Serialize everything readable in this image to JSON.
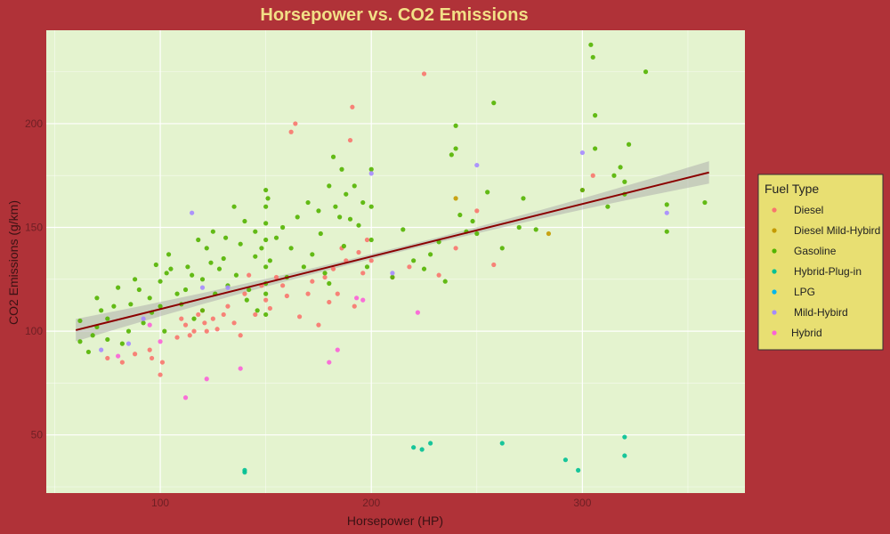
{
  "colors": {
    "background": "#b03238",
    "panel": "#e4f3cf",
    "grid_major": "#ffffff",
    "title": "#f2df86",
    "tick": "#6e1f24",
    "axis_label": "#3a1214",
    "legend_bg": "#e8df72",
    "trend_line": "#8b0000",
    "ribbon": "#a9a9a9"
  },
  "chart_data": {
    "type": "scatter",
    "title": "Horsepower vs. CO2 Emissions",
    "xlabel": "Horsepower (HP)",
    "ylabel": "CO2 Emissions (g/km)",
    "xlim": [
      46,
      377
    ],
    "ylim": [
      22,
      245
    ],
    "x_ticks": [
      100,
      200,
      300
    ],
    "y_ticks": [
      50,
      100,
      150,
      200
    ],
    "grid": true,
    "legend": {
      "title": "Fuel Type",
      "position": "right"
    },
    "trend": {
      "method": "linear",
      "x": [
        60,
        360
      ],
      "y": [
        100.5,
        176.5
      ]
    },
    "series": [
      {
        "name": "Diesel",
        "color": "#f8766d",
        "points": [
          [
            75,
            87
          ],
          [
            82,
            85
          ],
          [
            88,
            89
          ],
          [
            95,
            91
          ],
          [
            96,
            87
          ],
          [
            100,
            79
          ],
          [
            101,
            85
          ],
          [
            108,
            97
          ],
          [
            110,
            106
          ],
          [
            112,
            103
          ],
          [
            114,
            98
          ],
          [
            116,
            100
          ],
          [
            118,
            108
          ],
          [
            120,
            110
          ],
          [
            121,
            104
          ],
          [
            122,
            100
          ],
          [
            125,
            106
          ],
          [
            127,
            101
          ],
          [
            130,
            108
          ],
          [
            132,
            112
          ],
          [
            135,
            104
          ],
          [
            138,
            98
          ],
          [
            140,
            118
          ],
          [
            142,
            127
          ],
          [
            145,
            108
          ],
          [
            148,
            122
          ],
          [
            150,
            115
          ],
          [
            152,
            111
          ],
          [
            155,
            126
          ],
          [
            158,
            122
          ],
          [
            160,
            117
          ],
          [
            162,
            196
          ],
          [
            164,
            200
          ],
          [
            166,
            107
          ],
          [
            170,
            118
          ],
          [
            172,
            124
          ],
          [
            175,
            103
          ],
          [
            178,
            126
          ],
          [
            180,
            114
          ],
          [
            182,
            130
          ],
          [
            184,
            118
          ],
          [
            186,
            140
          ],
          [
            188,
            134
          ],
          [
            190,
            192
          ],
          [
            191,
            208
          ],
          [
            192,
            112
          ],
          [
            194,
            138
          ],
          [
            196,
            128
          ],
          [
            198,
            144
          ],
          [
            200,
            134
          ],
          [
            210,
            126
          ],
          [
            218,
            131
          ],
          [
            225,
            224
          ],
          [
            232,
            127
          ],
          [
            240,
            140
          ],
          [
            250,
            158
          ],
          [
            258,
            132
          ],
          [
            300,
            168
          ],
          [
            305,
            175
          ]
        ]
      },
      {
        "name": "Diesel Mild-Hybird",
        "color": "#c49a00",
        "points": [
          [
            240,
            164
          ],
          [
            284,
            147
          ]
        ]
      },
      {
        "name": "Gasoline",
        "color": "#53b400",
        "points": [
          [
            62,
            105
          ],
          [
            62,
            95
          ],
          [
            66,
            90
          ],
          [
            68,
            98
          ],
          [
            70,
            102
          ],
          [
            70,
            116
          ],
          [
            72,
            110
          ],
          [
            75,
            96
          ],
          [
            75,
            106
          ],
          [
            78,
            112
          ],
          [
            80,
            121
          ],
          [
            82,
            94
          ],
          [
            85,
            100
          ],
          [
            86,
            113
          ],
          [
            88,
            125
          ],
          [
            90,
            120
          ],
          [
            92,
            104
          ],
          [
            95,
            116
          ],
          [
            96,
            109
          ],
          [
            98,
            132
          ],
          [
            100,
            112
          ],
          [
            100,
            124
          ],
          [
            102,
            100
          ],
          [
            103,
            128
          ],
          [
            104,
            137
          ],
          [
            105,
            130
          ],
          [
            108,
            118
          ],
          [
            110,
            113
          ],
          [
            112,
            120
          ],
          [
            113,
            131
          ],
          [
            115,
            127
          ],
          [
            116,
            106
          ],
          [
            118,
            144
          ],
          [
            120,
            125
          ],
          [
            120,
            110
          ],
          [
            122,
            140
          ],
          [
            124,
            133
          ],
          [
            125,
            148
          ],
          [
            126,
            118
          ],
          [
            128,
            130
          ],
          [
            130,
            135
          ],
          [
            131,
            145
          ],
          [
            132,
            122
          ],
          [
            135,
            160
          ],
          [
            136,
            127
          ],
          [
            138,
            142
          ],
          [
            140,
            153
          ],
          [
            141,
            115
          ],
          [
            142,
            120
          ],
          [
            145,
            136
          ],
          [
            145,
            148
          ],
          [
            146,
            110
          ],
          [
            148,
            140
          ],
          [
            150,
            108
          ],
          [
            150,
            118
          ],
          [
            150,
            123
          ],
          [
            150,
            131
          ],
          [
            150,
            144
          ],
          [
            150,
            152
          ],
          [
            150,
            160
          ],
          [
            150,
            168
          ],
          [
            151,
            164
          ],
          [
            152,
            134
          ],
          [
            155,
            145
          ],
          [
            158,
            150
          ],
          [
            160,
            126
          ],
          [
            162,
            140
          ],
          [
            165,
            155
          ],
          [
            168,
            131
          ],
          [
            170,
            162
          ],
          [
            172,
            137
          ],
          [
            175,
            158
          ],
          [
            176,
            147
          ],
          [
            178,
            128
          ],
          [
            180,
            170
          ],
          [
            180,
            123
          ],
          [
            182,
            184
          ],
          [
            183,
            160
          ],
          [
            185,
            155
          ],
          [
            186,
            178
          ],
          [
            187,
            141
          ],
          [
            188,
            166
          ],
          [
            190,
            154
          ],
          [
            192,
            170
          ],
          [
            194,
            151
          ],
          [
            196,
            162
          ],
          [
            198,
            131
          ],
          [
            200,
            178
          ],
          [
            200,
            144
          ],
          [
            200,
            160
          ],
          [
            210,
            126
          ],
          [
            215,
            149
          ],
          [
            220,
            134
          ],
          [
            225,
            130
          ],
          [
            228,
            137
          ],
          [
            232,
            143
          ],
          [
            235,
            124
          ],
          [
            238,
            185
          ],
          [
            240,
            199
          ],
          [
            240,
            188
          ],
          [
            242,
            156
          ],
          [
            245,
            148
          ],
          [
            248,
            153
          ],
          [
            250,
            147
          ],
          [
            255,
            167
          ],
          [
            258,
            210
          ],
          [
            262,
            140
          ],
          [
            270,
            150
          ],
          [
            272,
            164
          ],
          [
            278,
            149
          ],
          [
            300,
            168
          ],
          [
            304,
            238
          ],
          [
            305,
            232
          ],
          [
            306,
            204
          ],
          [
            306,
            188
          ],
          [
            312,
            160
          ],
          [
            315,
            175
          ],
          [
            318,
            179
          ],
          [
            320,
            172
          ],
          [
            320,
            166
          ],
          [
            322,
            190
          ],
          [
            330,
            225
          ],
          [
            340,
            161
          ],
          [
            340,
            148
          ],
          [
            358,
            162
          ]
        ]
      },
      {
        "name": "Hybrid-Plug-in",
        "color": "#00c094",
        "points": [
          [
            140,
            33
          ],
          [
            140,
            32
          ],
          [
            220,
            44
          ],
          [
            224,
            43
          ],
          [
            228,
            46
          ],
          [
            262,
            46
          ],
          [
            292,
            38
          ],
          [
            298,
            33
          ],
          [
            320,
            49
          ],
          [
            320,
            40
          ]
        ]
      },
      {
        "name": "LPG",
        "color": "#00b6eb",
        "points": []
      },
      {
        "name": "Mild-Hybird",
        "color": "#a58aff",
        "points": [
          [
            72,
            91
          ],
          [
            85,
            94
          ],
          [
            92,
            106
          ],
          [
            115,
            157
          ],
          [
            120,
            121
          ],
          [
            132,
            121
          ],
          [
            200,
            176
          ],
          [
            210,
            128
          ],
          [
            250,
            180
          ],
          [
            300,
            186
          ],
          [
            340,
            157
          ]
        ]
      },
      {
        "name": "Hybrid",
        "color": "#fb61d7",
        "points": [
          [
            80,
            88
          ],
          [
            95,
            103
          ],
          [
            100,
            95
          ],
          [
            112,
            68
          ],
          [
            122,
            77
          ],
          [
            138,
            82
          ],
          [
            180,
            85
          ],
          [
            184,
            91
          ],
          [
            193,
            116
          ],
          [
            196,
            115
          ],
          [
            222,
            109
          ]
        ]
      }
    ]
  }
}
